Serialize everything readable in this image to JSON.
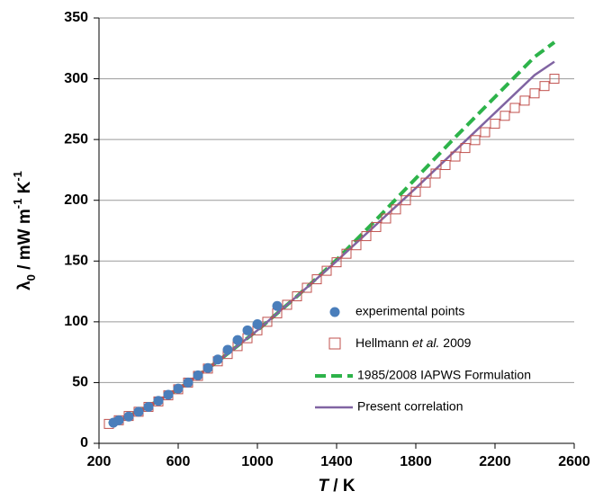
{
  "chart_data": {
    "type": "scatter",
    "xlabel": [
      {
        "text": "T",
        "style": "italic"
      },
      {
        "text": " / K"
      }
    ],
    "ylabel": [
      {
        "text": "λ"
      },
      {
        "text": "0",
        "script": "sub"
      },
      {
        "text": " / mW m"
      },
      {
        "text": "-1",
        "script": "sup"
      },
      {
        "text": " K"
      },
      {
        "text": "-1",
        "script": "sup"
      }
    ],
    "xlim": [
      200,
      2600
    ],
    "ylim": [
      0,
      350
    ],
    "xticks": [
      200,
      600,
      1000,
      1400,
      1800,
      2200,
      2600
    ],
    "yticks": [
      0,
      50,
      100,
      150,
      200,
      250,
      300,
      350
    ],
    "grid": true,
    "series": [
      {
        "name": "experimental points",
        "style": "circle",
        "color": "#4a7ebb",
        "x": [
          273,
          300,
          350,
          400,
          450,
          500,
          550,
          600,
          650,
          700,
          750,
          800,
          850,
          900,
          950,
          1000,
          1100
        ],
        "values": [
          17,
          19,
          22,
          26,
          30,
          35,
          40,
          45,
          50,
          56,
          62,
          69,
          77,
          85,
          93,
          98,
          113
        ]
      },
      {
        "name": "Hellmann et al. 2009",
        "italic": "et al.",
        "style": "square",
        "color": "#c0504d",
        "x": [
          250,
          300,
          350,
          400,
          450,
          500,
          550,
          600,
          650,
          700,
          750,
          800,
          850,
          900,
          950,
          1000,
          1050,
          1100,
          1150,
          1200,
          1250,
          1300,
          1350,
          1400,
          1450,
          1500,
          1550,
          1600,
          1650,
          1700,
          1750,
          1800,
          1850,
          1900,
          1950,
          2000,
          2050,
          2100,
          2150,
          2200,
          2250,
          2300,
          2350,
          2400,
          2450,
          2500
        ],
        "values": [
          16,
          19,
          22.5,
          26,
          30,
          34.5,
          39.5,
          44.5,
          50,
          55.5,
          61.5,
          67.5,
          73.5,
          80,
          86.5,
          93,
          100,
          107,
          114,
          121,
          128,
          135,
          142,
          149,
          156,
          163,
          170.5,
          178,
          185,
          192.5,
          200,
          207,
          214.5,
          222,
          229,
          236,
          243,
          249.5,
          256,
          263,
          269.5,
          276,
          282,
          288,
          294,
          300
        ]
      },
      {
        "name": "1985/2008 IAPWS Formulation",
        "style": "dashed",
        "color": "#2db34a",
        "x": [
          250,
          400,
          600,
          800,
          1000,
          1200,
          1400,
          1600,
          1800,
          2000,
          2200,
          2400,
          2500
        ],
        "values": [
          16,
          26,
          44.5,
          67.5,
          93,
          121,
          151,
          184,
          218,
          252,
          285,
          318,
          330
        ]
      },
      {
        "name": "Present correlation",
        "style": "solid",
        "color": "#8064a2",
        "x": [
          250,
          400,
          600,
          800,
          1000,
          1200,
          1400,
          1600,
          1800,
          2000,
          2200,
          2400,
          2500
        ],
        "values": [
          16,
          26,
          44.5,
          67.5,
          93,
          121,
          150,
          180,
          210,
          241,
          272,
          303,
          314
        ]
      }
    ]
  }
}
